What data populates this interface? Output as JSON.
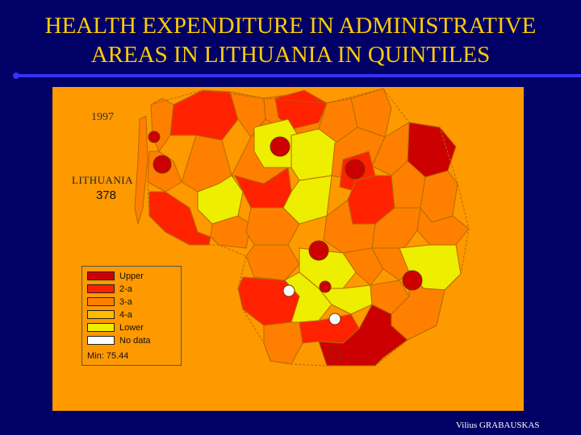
{
  "slide": {
    "title_line1": "HEALTH EXPENDITURE IN ADMINISTRATIVE",
    "title_line2": "AREAS IN LITHUANIA IN QUINTILES",
    "author": "Vilius GRABAUSKAS"
  },
  "map": {
    "year": "1997",
    "country_label": "LITHUANIA",
    "country_value": "378",
    "legend": {
      "items": [
        {
          "label": "Upper",
          "color": "#cc0000"
        },
        {
          "label": "2-a",
          "color": "#ff2200"
        },
        {
          "label": "3-a",
          "color": "#ff8000"
        },
        {
          "label": "4-a",
          "color": "#ffbb00"
        },
        {
          "label": "Lower",
          "color": "#eeee00"
        },
        {
          "label": "No data",
          "color": "#ffffff"
        }
      ],
      "min_label": "Min: 75.44"
    },
    "colors": {
      "background": "#000066",
      "title": "#ffcc00",
      "panel": "#ff9900",
      "rule": "#3333ff"
    }
  }
}
